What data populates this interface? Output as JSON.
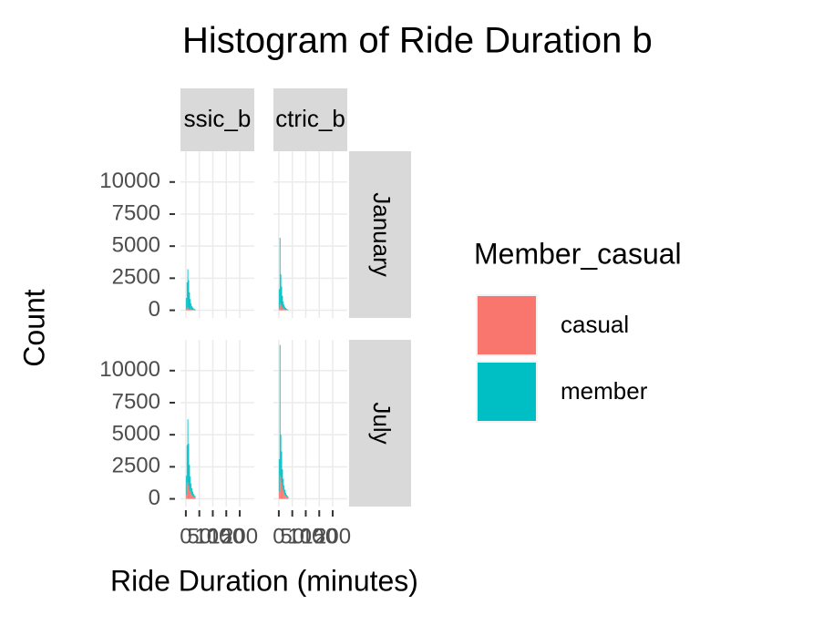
{
  "chart_data": {
    "type": "histogram",
    "title": "Histogram of Ride Duration b",
    "x_label": "Ride Duration (minutes)",
    "y_label": "Count",
    "legend_title": "Member_casual",
    "col_labels": [
      "ssic_b",
      "ctric_b"
    ],
    "row_labels": [
      "January",
      "July"
    ],
    "series": [
      {
        "name": "casual",
        "color": "#F8766D"
      },
      {
        "name": "member",
        "color": "#00BFC4"
      }
    ],
    "bins": [
      0,
      3,
      6,
      9,
      12,
      15,
      18,
      21,
      24,
      27,
      30,
      33,
      36
    ],
    "xlim": [
      -20,
      254
    ],
    "xticks": [
      0,
      50,
      100,
      150,
      200
    ],
    "ylim": [
      -600,
      12400
    ],
    "yticks": [
      0,
      2500,
      5000,
      7500,
      10000
    ],
    "grid": true,
    "panels": [
      {
        "values": [
          [
            60,
            180,
            200,
            150,
            100,
            70,
            50,
            35,
            25,
            18,
            12,
            8
          ],
          [
            900,
            2000,
            3000,
            2200,
            1300,
            800,
            500,
            300,
            200,
            130,
            90,
            60
          ]
        ]
      },
      {
        "values": [
          [
            150,
            450,
            500,
            350,
            220,
            140,
            90,
            60,
            40,
            25,
            18,
            12
          ],
          [
            1500,
            5200,
            2300,
            1500,
            900,
            550,
            350,
            220,
            140,
            90,
            60,
            40
          ]
        ]
      },
      {
        "values": [
          [
            300,
            1200,
            1300,
            1000,
            750,
            550,
            400,
            300,
            220,
            160,
            120,
            90
          ],
          [
            1500,
            3000,
            4900,
            3300,
            1900,
            1200,
            800,
            520,
            350,
            240,
            170,
            120
          ]
        ]
      },
      {
        "values": [
          [
            600,
            1800,
            1700,
            1300,
            900,
            650,
            450,
            320,
            230,
            160,
            120,
            90
          ],
          [
            2500,
            10200,
            3300,
            2400,
            1400,
            900,
            600,
            400,
            260,
            170,
            120,
            80
          ]
        ]
      }
    ]
  }
}
